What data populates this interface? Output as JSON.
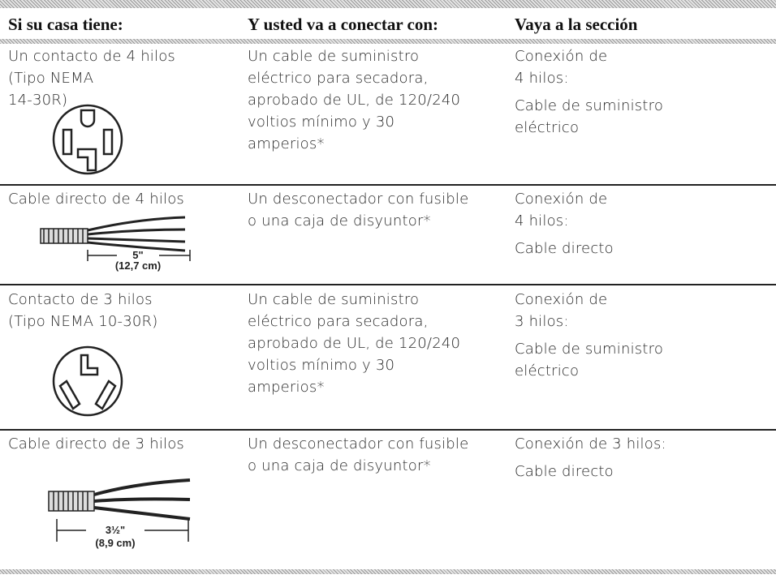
{
  "table": {
    "header": [
      "Si su casa tiene:",
      "Y usted va a conectar con:",
      "Vaya a la sección"
    ],
    "rows": [
      {
        "house": [
          "Un contacto de 4 hilos",
          "(Tipo NEMA",
          "14-30R)"
        ],
        "connect": [
          "Un cable de suministro",
          "eléctrico para secadora,",
          "aprobado de UL, de 120/240",
          "voltios mínimo y 30",
          "amperios*"
        ],
        "section": [
          [
            "Conexión de",
            "4 hilos:"
          ],
          [
            "Cable de suministro",
            "eléctrico"
          ]
        ]
      },
      {
        "house": [
          "Cable directo de 4 hilos"
        ],
        "figure": [
          "5\"",
          "(12,7 cm)"
        ],
        "connect": [
          "Un desconectador con fusible",
          "o una caja de disyuntor*"
        ],
        "section": [
          [
            "Conexión de",
            "4 hilos:"
          ],
          [
            "Cable directo"
          ]
        ]
      },
      {
        "house": [
          "Contacto de 3 hilos",
          "(Tipo NEMA 10-30R)"
        ],
        "connect": [
          "Un cable de suministro",
          "eléctrico para secadora,",
          "aprobado de UL, de 120/240",
          "voltios mínimo y 30",
          "amperios*"
        ],
        "section": [
          [
            "Conexión de",
            "3 hilos:"
          ],
          [
            "Cable de suministro",
            "eléctrico"
          ]
        ]
      },
      {
        "house": [
          "Cable directo de 3 hilos"
        ],
        "figure": [
          "3½\"",
          "(8,9 cm)"
        ],
        "connect": [
          "Un desconectador con fusible",
          "o una caja de disyuntor*"
        ],
        "section": [
          [
            "Conexión de 3 hilos:"
          ],
          [
            "Cable directo"
          ]
        ]
      }
    ]
  }
}
